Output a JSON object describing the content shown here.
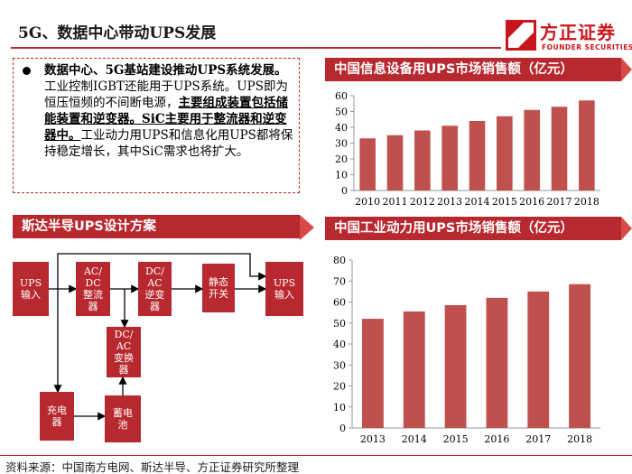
{
  "header": {
    "title": "5G、数据中心带动UPS发展"
  },
  "logo": {
    "cn": "方正证券",
    "en": "FOUNDER SECURITIES",
    "color": "#c8161d"
  },
  "bullet": {
    "bold_lead": "数据中心、5G基站建设推动UPS系统发展。",
    "text_1": "工业控制IGBT还能用于UPS系统。UPS即为恒压恒频的不间断电源，",
    "underline_1": "主要组成装置包括储能装置和逆变器。",
    "underline_2": "SiC主要用于整流器和逆变器中。",
    "text_2": "工业动力用UPS和信息化用UPS都将保持稳定增长，其中SiC需求也将扩大。"
  },
  "diagram": {
    "title": "斯达半导UPS设计方案",
    "nodes": {
      "ups_in_left": "UPS\n输入",
      "acdc": "AC/\nDC\n整流\n器",
      "dcac": "DC/\nAC\n逆变\n器",
      "static_switch": "静态\n开关",
      "ups_in_right": "UPS\n输入",
      "dcac_converter": "DC/\nAC\n变换\n器",
      "charger": "充电\n器",
      "battery": "蓄电\n池"
    }
  },
  "chart_data": [
    {
      "type": "bar",
      "title": "中国信息设备用UPS市场销售额（亿元）",
      "categories": [
        "2010",
        "2011",
        "2012",
        "2013",
        "2014",
        "2015",
        "2016",
        "2017",
        "2018"
      ],
      "values": [
        33,
        35,
        38,
        41,
        44,
        47,
        51,
        53,
        57
      ],
      "ylim": [
        0,
        60
      ],
      "yticks": [
        0,
        10,
        20,
        30,
        40,
        50,
        60
      ],
      "grid": false,
      "color": "#c0504d"
    },
    {
      "type": "bar",
      "title": "中国工业动力用UPS市场销售额（亿元）",
      "categories": [
        "2013",
        "2014",
        "2015",
        "2016",
        "2017",
        "2018"
      ],
      "values": [
        52,
        55.5,
        58.5,
        62,
        65,
        68.5
      ],
      "ylim": [
        0,
        80
      ],
      "yticks": [
        0,
        10,
        20,
        30,
        40,
        50,
        60,
        70,
        80
      ],
      "grid": false,
      "color": "#c0504d"
    }
  ],
  "footer": {
    "source": "资料来源：中国南方电网、斯达半导、方正证券研究所整理"
  },
  "theme": {
    "accent": "#b8292f"
  }
}
